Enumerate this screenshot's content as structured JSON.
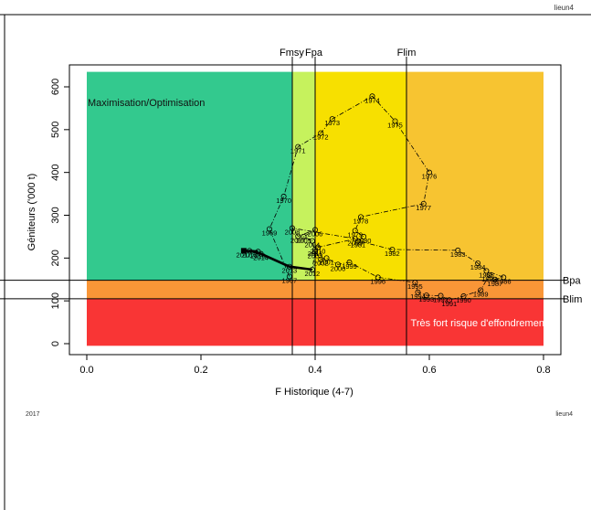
{
  "page": {
    "corner_label_top": "lieun4",
    "footer_left": "2017",
    "footer_right": "lieun4"
  },
  "chart_data": {
    "type": "line",
    "title": "",
    "xlabel": "F Historique (4-7)",
    "ylabel": "Géniteurs ('000 t)",
    "xlim": [
      0.0,
      0.8
    ],
    "ylim": [
      0,
      600
    ],
    "x_ticks": [
      "0.0",
      "0.2",
      "0.4",
      "0.6",
      "0.8"
    ],
    "y_ticks": [
      "0",
      "100",
      "200",
      "300",
      "400",
      "500",
      "600"
    ],
    "grid": false,
    "legend": "none",
    "zones": [
      {
        "name": "optimisation",
        "x0": 0.0,
        "x1": 0.36,
        "y0": 148,
        "y1": 635,
        "color": "#33c98e"
      },
      {
        "name": "fmsy-fpa",
        "x0": 0.36,
        "x1": 0.4,
        "y0": 148,
        "y1": 635,
        "color": "#c6f25d"
      },
      {
        "name": "fpa-flim",
        "x0": 0.4,
        "x1": 0.56,
        "y0": 148,
        "y1": 635,
        "color": "#f7e000"
      },
      {
        "name": "above-flim",
        "x0": 0.56,
        "x1": 0.8,
        "y0": 148,
        "y1": 635,
        "color": "#f7c431"
      },
      {
        "name": "bpa-blim",
        "x0": 0.0,
        "x1": 0.8,
        "y0": 105,
        "y1": 148,
        "color": "#f99637"
      },
      {
        "name": "below-blim",
        "x0": 0.0,
        "x1": 0.8,
        "y0": -5,
        "y1": 105,
        "color": "#f93535"
      }
    ],
    "zone_labels": {
      "optimisation": "Maximisation/Optimisation",
      "collapse": "Très fort risque d'effondrement"
    },
    "reference_points": {
      "Fmsy": {
        "label": "Fmsy",
        "value": 0.36
      },
      "Fpa": {
        "label": "Fpa",
        "value": 0.4
      },
      "Flim": {
        "label": "Flim",
        "value": 0.56
      },
      "Bpa": {
        "label": "Bpa",
        "value": 148
      },
      "Blim": {
        "label": "Blim",
        "value": 105
      }
    },
    "series": [
      {
        "points": [
          {
            "year": "1967",
            "x": 0.355,
            "y": 157
          },
          {
            "year": "1969",
            "x": 0.32,
            "y": 268
          },
          {
            "year": "1970",
            "x": 0.345,
            "y": 344
          },
          {
            "year": "1971",
            "x": 0.37,
            "y": 460
          },
          {
            "year": "1972",
            "x": 0.41,
            "y": 492
          },
          {
            "year": "1973",
            "x": 0.43,
            "y": 525
          },
          {
            "year": "1974",
            "x": 0.5,
            "y": 578
          },
          {
            "year": "1975",
            "x": 0.54,
            "y": 520
          },
          {
            "year": "1976",
            "x": 0.6,
            "y": 400
          },
          {
            "year": "1977",
            "x": 0.59,
            "y": 327
          },
          {
            "year": "1978",
            "x": 0.48,
            "y": 296
          },
          {
            "year": "1979",
            "x": 0.47,
            "y": 264
          },
          {
            "year": "1980",
            "x": 0.485,
            "y": 250
          },
          {
            "year": "1981",
            "x": 0.475,
            "y": 240
          },
          {
            "year": "1982",
            "x": 0.535,
            "y": 220
          },
          {
            "year": "1983",
            "x": 0.65,
            "y": 218
          },
          {
            "year": "1984",
            "x": 0.685,
            "y": 188
          },
          {
            "year": "1985",
            "x": 0.7,
            "y": 170
          },
          {
            "year": "1986",
            "x": 0.73,
            "y": 155
          },
          {
            "year": "1987",
            "x": 0.715,
            "y": 150
          },
          {
            "year": "1988",
            "x": 0.705,
            "y": 160
          },
          {
            "year": "1989",
            "x": 0.69,
            "y": 125
          },
          {
            "year": "1990",
            "x": 0.66,
            "y": 111
          },
          {
            "year": "1991",
            "x": 0.635,
            "y": 102
          },
          {
            "year": "1992",
            "x": 0.62,
            "y": 112
          },
          {
            "year": "1993",
            "x": 0.595,
            "y": 113
          },
          {
            "year": "1994",
            "x": 0.58,
            "y": 120
          },
          {
            "year": "1995",
            "x": 0.575,
            "y": 143
          },
          {
            "year": "1996",
            "x": 0.51,
            "y": 155
          },
          {
            "year": "1999",
            "x": 0.46,
            "y": 190
          },
          {
            "year": "2000",
            "x": 0.44,
            "y": 185
          },
          {
            "year": "2001",
            "x": 0.42,
            "y": 200
          },
          {
            "year": "2002",
            "x": 0.41,
            "y": 197
          },
          {
            "year": "2003",
            "x": 0.4,
            "y": 215
          },
          {
            "year": "2004",
            "x": 0.395,
            "y": 240
          },
          {
            "year": "2005",
            "x": 0.38,
            "y": 250
          },
          {
            "year": "2006",
            "x": 0.4,
            "y": 266
          },
          {
            "year": "2007",
            "x": 0.37,
            "y": 251
          },
          {
            "year": "2008",
            "x": 0.36,
            "y": 270
          },
          {
            "year": "2009",
            "x": 0.47,
            "y": 245
          },
          {
            "year": "2010",
            "x": 0.405,
            "y": 225
          },
          {
            "year": "2011",
            "x": 0.4,
            "y": 220
          },
          {
            "year": "2012",
            "x": 0.395,
            "y": 173
          },
          {
            "year": "2013",
            "x": 0.355,
            "y": 180
          },
          {
            "year": "2014",
            "x": 0.305,
            "y": 210
          },
          {
            "year": "2015",
            "x": 0.285,
            "y": 217
          },
          {
            "year": "2016",
            "x": 0.3,
            "y": 215
          },
          {
            "year": "2017",
            "x": 0.275,
            "y": 217
          }
        ]
      }
    ]
  }
}
